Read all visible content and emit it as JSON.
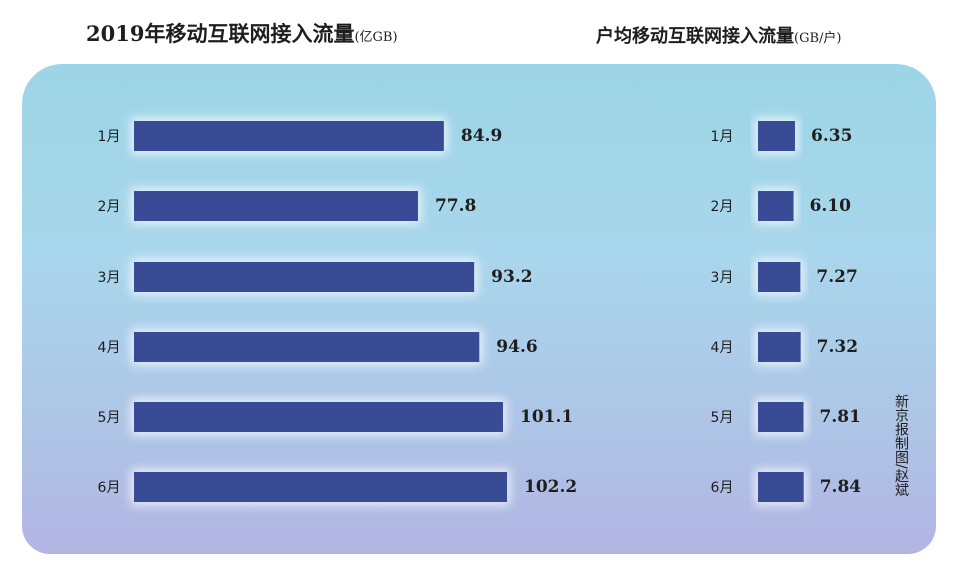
{
  "chart_data": [
    {
      "type": "bar",
      "orientation": "horizontal",
      "title": "2019年移动互联网接入流量",
      "unit": "(亿GB)",
      "categories": [
        "1月",
        "2月",
        "3月",
        "4月",
        "5月",
        "6月"
      ],
      "values": [
        84.9,
        77.8,
        93.2,
        94.6,
        101.1,
        102.2
      ],
      "value_labels": [
        "84.9",
        "77.8",
        "93.2",
        "94.6",
        "101.1",
        "102.2"
      ],
      "bar_color": "#3a4b96"
    },
    {
      "type": "bar",
      "orientation": "horizontal",
      "title": "户均移动互联网接入流量",
      "unit": "(GB/户)",
      "categories": [
        "1月",
        "2月",
        "3月",
        "4月",
        "5月",
        "6月"
      ],
      "values": [
        6.35,
        6.1,
        7.27,
        7.32,
        7.81,
        7.84
      ],
      "value_labels": [
        "6.35",
        "6.10",
        "7.27",
        "7.32",
        "7.81",
        "7.84"
      ],
      "bar_color": "#3a4b96"
    }
  ],
  "credit": "新京报制图/赵斌",
  "colors": {
    "bar": "#3a4b96",
    "panel_top": "#9cd5e6",
    "panel_bottom": "#b2b5e3",
    "text": "#1e1e1e"
  }
}
